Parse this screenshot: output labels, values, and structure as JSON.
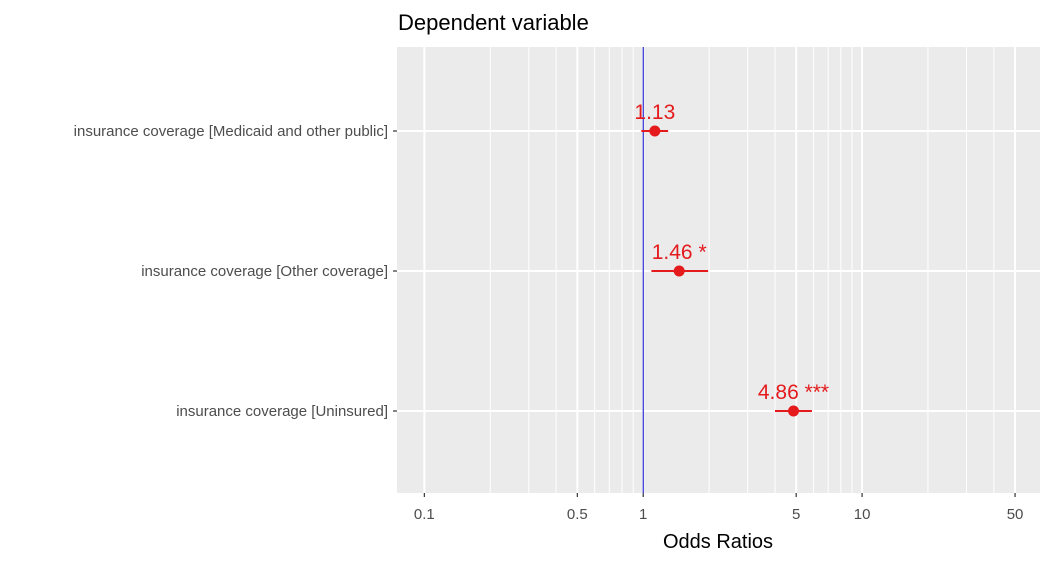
{
  "chart_data": {
    "type": "scatter",
    "title": "Dependent variable",
    "xlabel": "Odds Ratios",
    "ylabel": "",
    "x_scale": "log",
    "xlim": [
      0.075,
      65
    ],
    "x_ticks": [
      0.1,
      0.5,
      1,
      5,
      10,
      50
    ],
    "x_tick_labels": [
      "0.1",
      "0.5",
      "1",
      "5",
      "10",
      "50"
    ],
    "x_minor_grid": [
      0.2,
      0.3,
      0.4,
      0.6,
      0.7,
      0.8,
      0.9,
      2,
      3,
      4,
      6,
      7,
      8,
      9,
      20,
      30,
      40
    ],
    "reference_line": 1,
    "categories": [
      "insurance coverage [Medicaid and other public]",
      "insurance coverage [Other coverage]",
      "insurance coverage [Uninsured]"
    ],
    "points": [
      {
        "category": "insurance coverage [Medicaid and other public]",
        "estimate": 1.13,
        "ci_low": 0.98,
        "ci_high": 1.3,
        "label": "1.13"
      },
      {
        "category": "insurance coverage [Other coverage]",
        "estimate": 1.46,
        "ci_low": 1.09,
        "ci_high": 1.98,
        "label": "1.46 *"
      },
      {
        "category": "insurance coverage [Uninsured]",
        "estimate": 4.86,
        "ci_low": 4.0,
        "ci_high": 5.9,
        "label": "4.86 ***"
      }
    ],
    "grid": true,
    "colors": {
      "panel": "#ebebeb",
      "grid": "#ffffff",
      "point": "#e41a1c",
      "reference_line": "#0000cc"
    }
  }
}
